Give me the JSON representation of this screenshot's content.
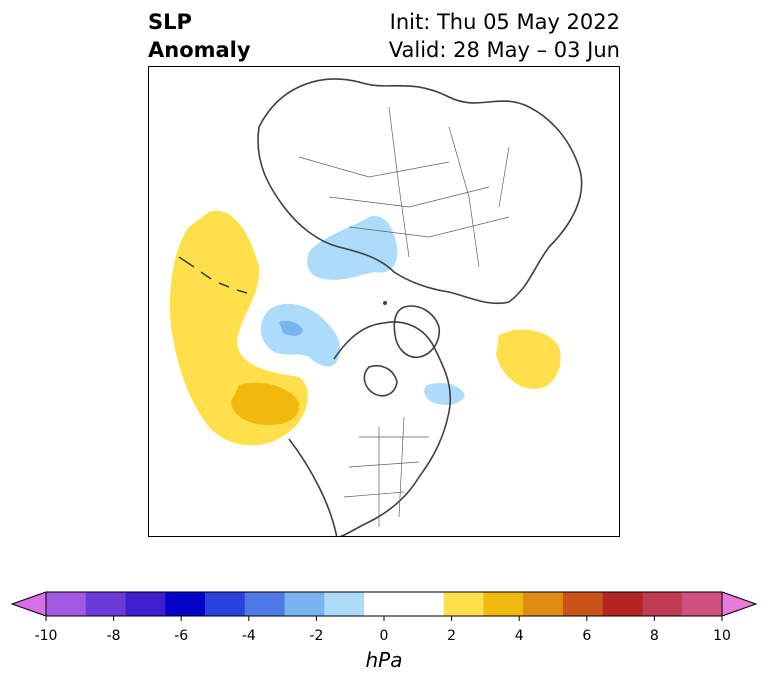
{
  "title": {
    "left_line1": "SLP",
    "left_line2": "Anomaly",
    "right_line1": "Init: Thu 05 May 2022",
    "right_line2": "Valid: 28 May – 03 Jun"
  },
  "map": {
    "projection": "north-polar-stereographic",
    "field": "Sea level pressure anomaly",
    "features": [
      {
        "name": "positive-anomaly-north-pacific",
        "level_hpa": "1-2",
        "color": "#ffe04a"
      },
      {
        "name": "positive-anomaly-core-northeast-pacific",
        "level_hpa": "2-3",
        "color": "#f1b80d"
      },
      {
        "name": "positive-anomaly-north-atlantic",
        "level_hpa": "1-2",
        "color": "#ffe04a"
      },
      {
        "name": "negative-anomaly-siberia",
        "level_hpa": "-1 to -2",
        "color": "#acdcfa"
      },
      {
        "name": "negative-anomaly-alaska",
        "level_hpa": "-1 to -2",
        "color": "#acdcfa"
      },
      {
        "name": "negative-anomaly-core-alaska",
        "level_hpa": "-2 to -3",
        "color": "#78b4f0"
      },
      {
        "name": "negative-anomaly-newfoundland",
        "level_hpa": "-1 to -2",
        "color": "#acdcfa"
      }
    ]
  },
  "colorbar": {
    "unit": "hPa",
    "min": -10,
    "max": 10,
    "ticks": [
      "-10",
      "-8",
      "-6",
      "-4",
      "-2",
      "0",
      "2",
      "4",
      "6",
      "8",
      "10"
    ],
    "low_extend_color": "#d46fe6",
    "high_extend_color": "#e87bd9",
    "colors": [
      "#d46fe6",
      "#a358e1",
      "#6a3ad8",
      "#3d1fcf",
      "#0404c8",
      "#2a42dc",
      "#4e7ae6",
      "#78b4f0",
      "#acdcfa",
      "#ffffff",
      "#ffffff",
      "#ffe04a",
      "#f1b80d",
      "#de8c12",
      "#c85218",
      "#b3231f",
      "#c23b54",
      "#cf4f7f",
      "#db67ae"
    ]
  }
}
